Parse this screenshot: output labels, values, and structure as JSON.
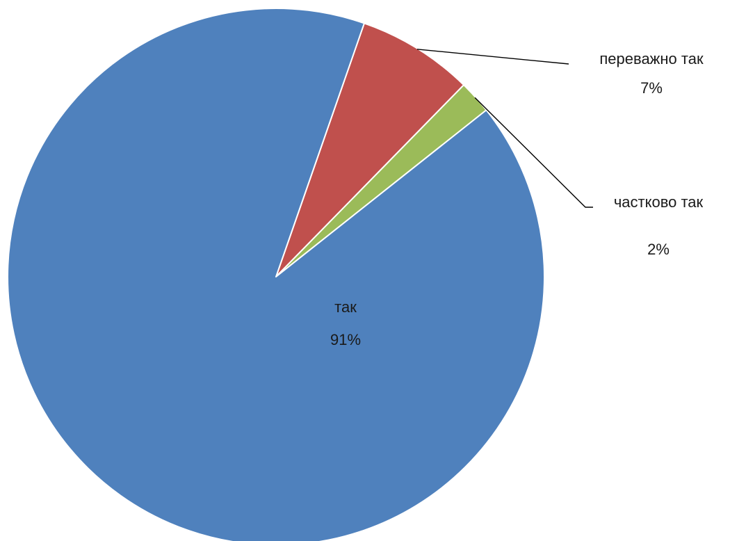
{
  "chart_data": {
    "type": "pie",
    "title": "",
    "categories": [
      "так",
      "переважно так",
      "частково так"
    ],
    "values": [
      91,
      7,
      2
    ],
    "value_labels": [
      "91%",
      "7%",
      "2%"
    ],
    "colors": [
      "#4F81BD",
      "#C0504D",
      "#9BBB59"
    ],
    "border_color": "#ffffff",
    "label_style": "category name and percentage",
    "legend": "none"
  }
}
